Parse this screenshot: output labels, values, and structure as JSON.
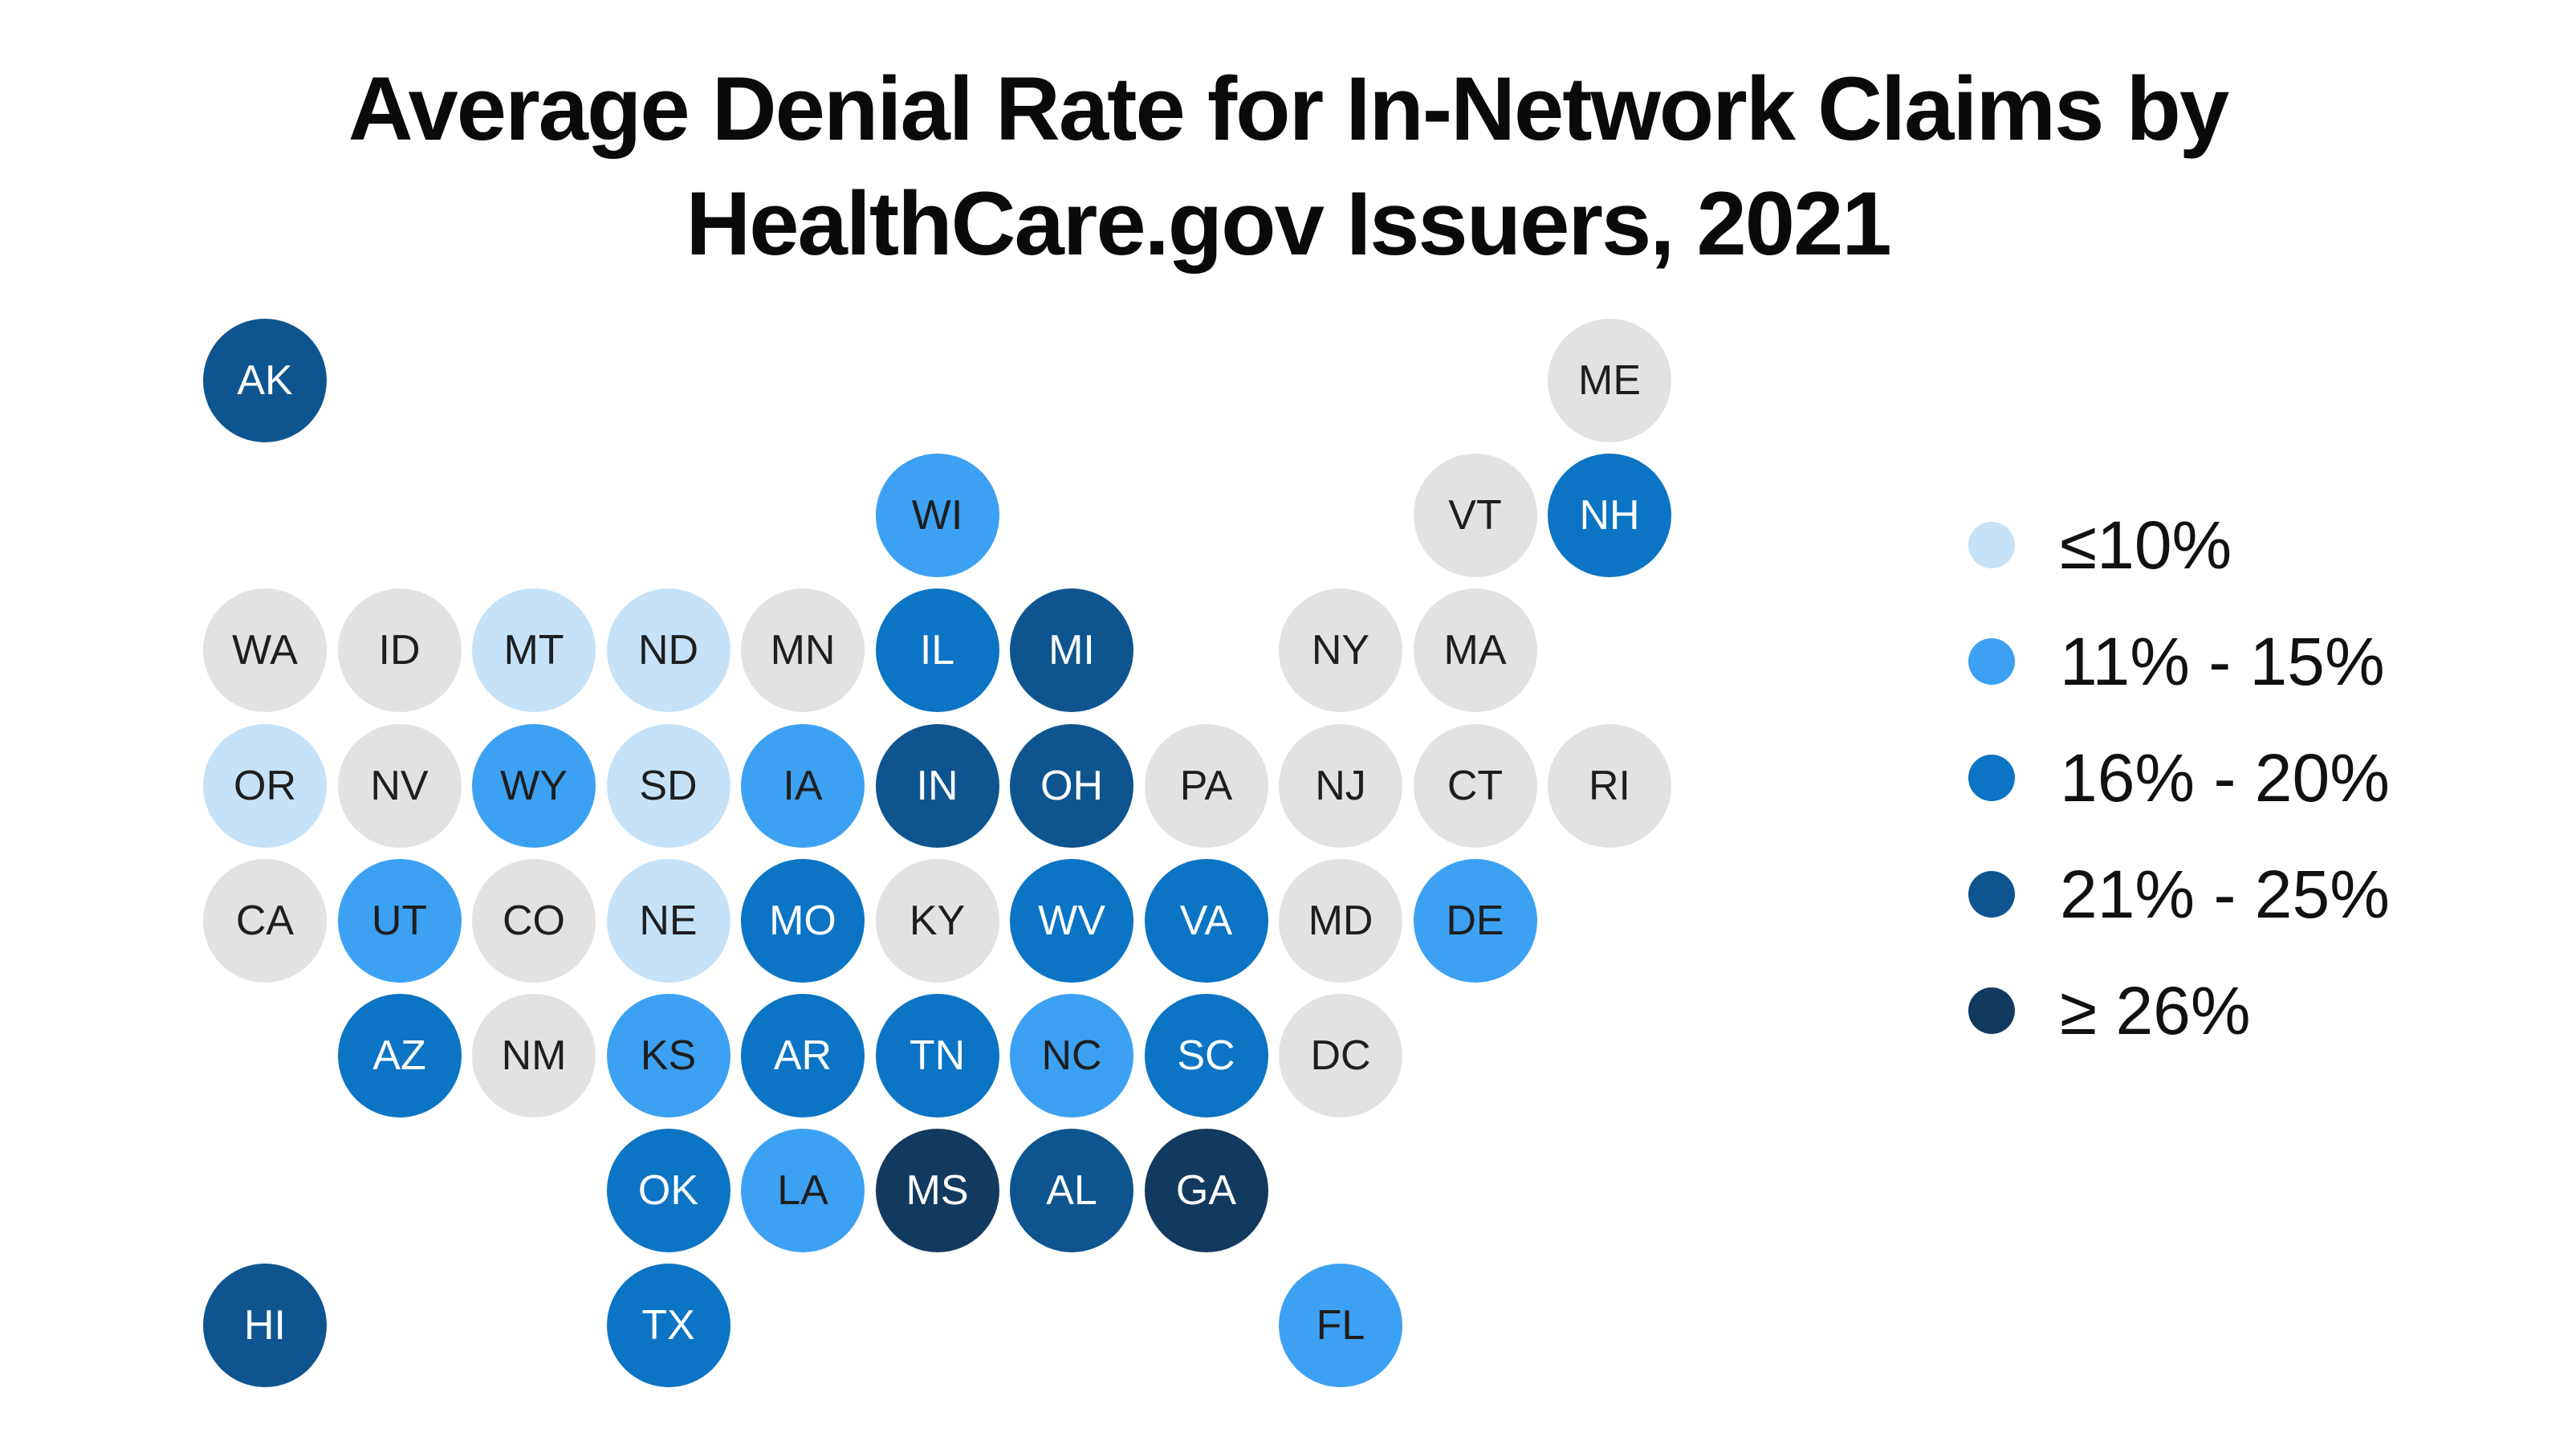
{
  "page": {
    "background": "#FFFFFF"
  },
  "chart_data": {
    "type": "heatmap",
    "subtype": "us-state-tile-grid-cartogram",
    "title": "Average Denial Rate for In-Network Claims by HealthCare.gov Issuers, 2021",
    "title_lines": [
      "Average Denial Rate for In-Network Claims by",
      "HealthCare.gov Issuers, 2021"
    ],
    "legend_position": "right",
    "grid": {
      "columns": 11,
      "rows": 8
    },
    "buckets": [
      {
        "label": "≤10%",
        "color": "#C5E2F9",
        "text_color": "#1E1E1E"
      },
      {
        "label": "11% - 15%",
        "color": "#3CA1F3",
        "text_color": "#1E1E1E"
      },
      {
        "label": "16% - 20%",
        "color": "#0B74C4",
        "text_color": "#FFFFFF"
      },
      {
        "label": "21% - 25%",
        "color": "#0E5590",
        "text_color": "#FFFFFF"
      },
      {
        "label": "≥ 26%",
        "color": "#123A5E",
        "text_color": "#FFFFFF"
      }
    ],
    "no_data": {
      "color": "#E2E2E2",
      "text_color": "#1E1E1E"
    },
    "tiles": [
      {
        "state": "AK",
        "col": 0,
        "row": 0,
        "bucket": 3
      },
      {
        "state": "ME",
        "col": 10,
        "row": 0,
        "bucket": null
      },
      {
        "state": "WI",
        "col": 5,
        "row": 1,
        "bucket": 1
      },
      {
        "state": "VT",
        "col": 9,
        "row": 1,
        "bucket": null
      },
      {
        "state": "NH",
        "col": 10,
        "row": 1,
        "bucket": 2
      },
      {
        "state": "WA",
        "col": 0,
        "row": 2,
        "bucket": null
      },
      {
        "state": "ID",
        "col": 1,
        "row": 2,
        "bucket": null
      },
      {
        "state": "MT",
        "col": 2,
        "row": 2,
        "bucket": 0
      },
      {
        "state": "ND",
        "col": 3,
        "row": 2,
        "bucket": 0
      },
      {
        "state": "MN",
        "col": 4,
        "row": 2,
        "bucket": null
      },
      {
        "state": "IL",
        "col": 5,
        "row": 2,
        "bucket": 2
      },
      {
        "state": "MI",
        "col": 6,
        "row": 2,
        "bucket": 3
      },
      {
        "state": "NY",
        "col": 8,
        "row": 2,
        "bucket": null
      },
      {
        "state": "MA",
        "col": 9,
        "row": 2,
        "bucket": null
      },
      {
        "state": "OR",
        "col": 0,
        "row": 3,
        "bucket": 0
      },
      {
        "state": "NV",
        "col": 1,
        "row": 3,
        "bucket": null
      },
      {
        "state": "WY",
        "col": 2,
        "row": 3,
        "bucket": 1
      },
      {
        "state": "SD",
        "col": 3,
        "row": 3,
        "bucket": 0
      },
      {
        "state": "IA",
        "col": 4,
        "row": 3,
        "bucket": 1
      },
      {
        "state": "IN",
        "col": 5,
        "row": 3,
        "bucket": 3
      },
      {
        "state": "OH",
        "col": 6,
        "row": 3,
        "bucket": 3
      },
      {
        "state": "PA",
        "col": 7,
        "row": 3,
        "bucket": null
      },
      {
        "state": "NJ",
        "col": 8,
        "row": 3,
        "bucket": null
      },
      {
        "state": "CT",
        "col": 9,
        "row": 3,
        "bucket": null
      },
      {
        "state": "RI",
        "col": 10,
        "row": 3,
        "bucket": null
      },
      {
        "state": "CA",
        "col": 0,
        "row": 4,
        "bucket": null
      },
      {
        "state": "UT",
        "col": 1,
        "row": 4,
        "bucket": 1
      },
      {
        "state": "CO",
        "col": 2,
        "row": 4,
        "bucket": null
      },
      {
        "state": "NE",
        "col": 3,
        "row": 4,
        "bucket": 0
      },
      {
        "state": "MO",
        "col": 4,
        "row": 4,
        "bucket": 2
      },
      {
        "state": "KY",
        "col": 5,
        "row": 4,
        "bucket": null
      },
      {
        "state": "WV",
        "col": 6,
        "row": 4,
        "bucket": 2
      },
      {
        "state": "VA",
        "col": 7,
        "row": 4,
        "bucket": 2
      },
      {
        "state": "MD",
        "col": 8,
        "row": 4,
        "bucket": null
      },
      {
        "state": "DE",
        "col": 9,
        "row": 4,
        "bucket": 1
      },
      {
        "state": "AZ",
        "col": 1,
        "row": 5,
        "bucket": 2
      },
      {
        "state": "NM",
        "col": 2,
        "row": 5,
        "bucket": null
      },
      {
        "state": "KS",
        "col": 3,
        "row": 5,
        "bucket": 1
      },
      {
        "state": "AR",
        "col": 4,
        "row": 5,
        "bucket": 2
      },
      {
        "state": "TN",
        "col": 5,
        "row": 5,
        "bucket": 2
      },
      {
        "state": "NC",
        "col": 6,
        "row": 5,
        "bucket": 1
      },
      {
        "state": "SC",
        "col": 7,
        "row": 5,
        "bucket": 2
      },
      {
        "state": "DC",
        "col": 8,
        "row": 5,
        "bucket": null
      },
      {
        "state": "OK",
        "col": 3,
        "row": 6,
        "bucket": 2
      },
      {
        "state": "LA",
        "col": 4,
        "row": 6,
        "bucket": 1
      },
      {
        "state": "MS",
        "col": 5,
        "row": 6,
        "bucket": 4
      },
      {
        "state": "AL",
        "col": 6,
        "row": 6,
        "bucket": 3
      },
      {
        "state": "GA",
        "col": 7,
        "row": 6,
        "bucket": 4
      },
      {
        "state": "HI",
        "col": 0,
        "row": 7,
        "bucket": 3
      },
      {
        "state": "TX",
        "col": 3,
        "row": 7,
        "bucket": 2
      },
      {
        "state": "FL",
        "col": 8,
        "row": 7,
        "bucket": 1
      }
    ]
  }
}
